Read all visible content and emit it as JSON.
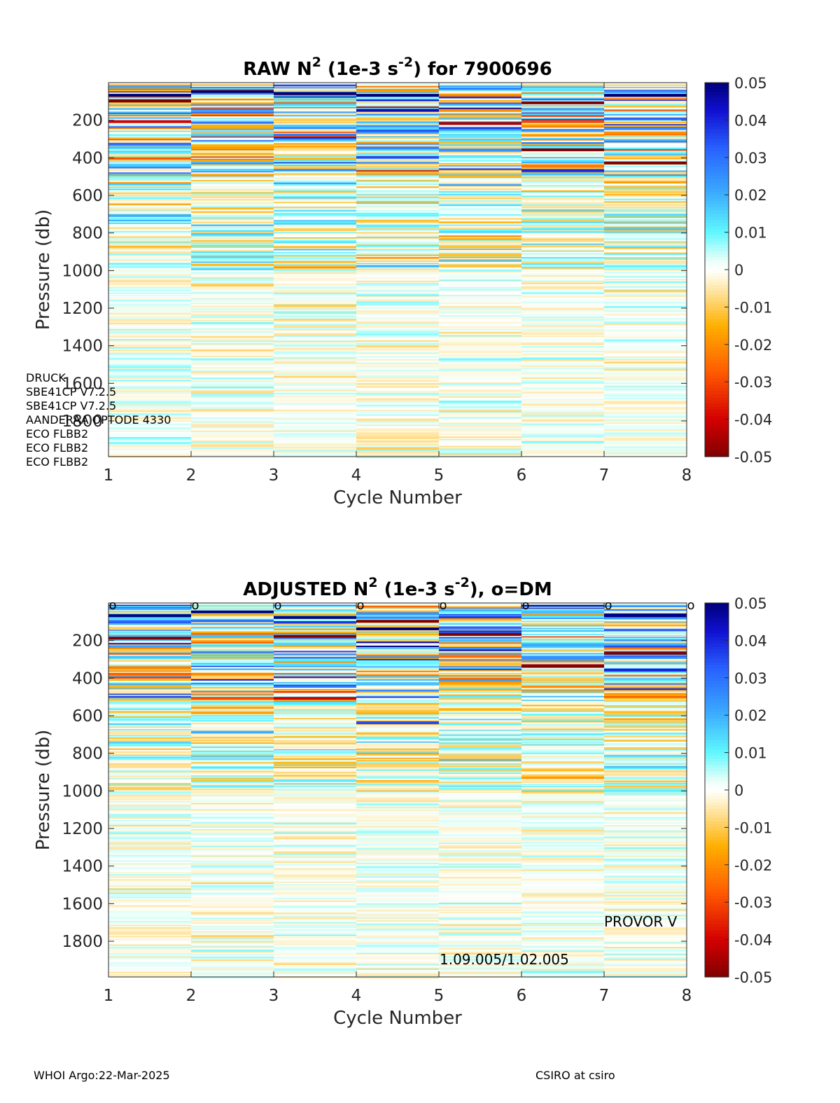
{
  "chart_data": [
    {
      "type": "heatmap",
      "title": {
        "main": "RAW N",
        "sup1": "2",
        "mid": " (1e-3 s",
        "sup2": "-2",
        "end": ") for 7900696"
      },
      "xlabel": "Cycle Number",
      "ylabel": "Pressure (db)",
      "x_ticks": [
        "1",
        "2",
        "3",
        "4",
        "5",
        "6",
        "7",
        "8"
      ],
      "y_ticks": [
        "200",
        "400",
        "600",
        "800",
        "1000",
        "1200",
        "1400",
        "1600",
        "1800"
      ],
      "colorbar_ticks": [
        "0.05",
        "0.04",
        "0.03",
        "0.02",
        "0.01",
        "0",
        "-0.01",
        "-0.02",
        "-0.03",
        "-0.04",
        "-0.05"
      ],
      "xlim": [
        1,
        8
      ],
      "ylim": [
        0,
        1990
      ],
      "clim": [
        -0.05,
        0.05
      ],
      "y_reversed": true,
      "colormap": "jet with white near zero",
      "cycles": [
        1,
        2,
        3,
        4,
        5,
        6,
        7
      ],
      "features": [
        {
          "cycle": 1,
          "pressure": 60,
          "value": 0.05
        },
        {
          "cycle": 1,
          "pressure": 90,
          "value": -0.05
        },
        {
          "cycle": 1,
          "pressure": 200,
          "value": -0.04
        },
        {
          "cycle": 1,
          "pressure": 320,
          "value": 0.03
        },
        {
          "cycle": 1,
          "pressure": 700,
          "value": 0.02
        },
        {
          "cycle": 2,
          "pressure": 40,
          "value": 0.05
        },
        {
          "cycle": 2,
          "pressure": 225,
          "value": -0.015
        },
        {
          "cycle": 2,
          "pressure": 460,
          "value": 0.015
        },
        {
          "cycle": 2,
          "pressure": 1070,
          "value": -0.01
        },
        {
          "cycle": 3,
          "pressure": 50,
          "value": 0.05
        },
        {
          "cycle": 3,
          "pressure": 190,
          "value": -0.01
        },
        {
          "cycle": 3,
          "pressure": 775,
          "value": -0.01
        },
        {
          "cycle": 3,
          "pressure": 1180,
          "value": -0.01
        },
        {
          "cycle": 4,
          "pressure": 60,
          "value": 0.05
        },
        {
          "cycle": 4,
          "pressure": 140,
          "value": 0.045
        },
        {
          "cycle": 4,
          "pressure": 390,
          "value": 0.035
        },
        {
          "cycle": 4,
          "pressure": 1940,
          "value": -0.01
        },
        {
          "cycle": 5,
          "pressure": 140,
          "value": -0.02
        },
        {
          "cycle": 5,
          "pressure": 210,
          "value": -0.045
        },
        {
          "cycle": 5,
          "pressure": 910,
          "value": -0.012
        },
        {
          "cycle": 6,
          "pressure": 100,
          "value": -0.05
        },
        {
          "cycle": 6,
          "pressure": 200,
          "value": -0.03
        },
        {
          "cycle": 6,
          "pressure": 350,
          "value": -0.05
        },
        {
          "cycle": 6,
          "pressure": 460,
          "value": 0.04
        },
        {
          "cycle": 7,
          "pressure": 60,
          "value": 0.05
        },
        {
          "cycle": 7,
          "pressure": 260,
          "value": -0.02
        },
        {
          "cycle": 7,
          "pressure": 420,
          "value": -0.05
        },
        {
          "cycle": 7,
          "pressure": 575,
          "value": -0.01
        }
      ],
      "annotations": [
        "DRUCK",
        "SBE41CP V7.2.5",
        "SBE41CP V7.2.5",
        "AANDERAA OPTODE 4330",
        "ECO FLBB2",
        "ECO FLBB2",
        "ECO FLBB2"
      ]
    },
    {
      "type": "heatmap",
      "title": {
        "main": "ADJUSTED N",
        "sup1": "2",
        "mid": " (1e-3 s",
        "sup2": "-2",
        "end": "), o=DM"
      },
      "xlabel": "Cycle Number",
      "ylabel": "Pressure (db)",
      "x_ticks": [
        "1",
        "2",
        "3",
        "4",
        "5",
        "6",
        "7",
        "8"
      ],
      "y_ticks": [
        "200",
        "400",
        "600",
        "800",
        "1000",
        "1200",
        "1400",
        "1600",
        "1800"
      ],
      "colorbar_ticks": [
        "0.05",
        "0.04",
        "0.03",
        "0.02",
        "0.01",
        "0",
        "-0.01",
        "-0.02",
        "-0.03",
        "-0.04",
        "-0.05"
      ],
      "xlim": [
        1,
        8
      ],
      "ylim": [
        0,
        1990
      ],
      "clim": [
        -0.05,
        0.05
      ],
      "y_reversed": true,
      "colormap": "jet with white near zero",
      "cycles": [
        1,
        2,
        3,
        4,
        5,
        6,
        7
      ],
      "dm_marker": "o",
      "dm_cycles": [
        1,
        2,
        3,
        4,
        5,
        6,
        7,
        8
      ],
      "features": [
        {
          "cycle": 1,
          "pressure": 60,
          "value": 0.05
        },
        {
          "cycle": 1,
          "pressure": 180,
          "value": -0.05
        },
        {
          "cycle": 1,
          "pressure": 340,
          "value": -0.02
        },
        {
          "cycle": 1,
          "pressure": 980,
          "value": -0.01
        },
        {
          "cycle": 2,
          "pressure": 40,
          "value": 0.05
        },
        {
          "cycle": 2,
          "pressure": 500,
          "value": -0.03
        },
        {
          "cycle": 2,
          "pressure": 680,
          "value": 0.02
        },
        {
          "cycle": 3,
          "pressure": 70,
          "value": 0.05
        },
        {
          "cycle": 3,
          "pressure": 170,
          "value": -0.05
        },
        {
          "cycle": 3,
          "pressure": 500,
          "value": -0.04
        },
        {
          "cycle": 4,
          "pressure": 90,
          "value": -0.05
        },
        {
          "cycle": 4,
          "pressure": 130,
          "value": 0.05
        },
        {
          "cycle": 4,
          "pressure": 630,
          "value": 0.035
        },
        {
          "cycle": 5,
          "pressure": 160,
          "value": -0.05
        },
        {
          "cycle": 5,
          "pressure": 810,
          "value": -0.01
        },
        {
          "cycle": 6,
          "pressure": 330,
          "value": -0.05
        },
        {
          "cycle": 6,
          "pressure": 560,
          "value": -0.01
        },
        {
          "cycle": 7,
          "pressure": 60,
          "value": 0.05
        },
        {
          "cycle": 7,
          "pressure": 260,
          "value": -0.05
        },
        {
          "cycle": 7,
          "pressure": 350,
          "value": 0.04
        }
      ],
      "annotations": [
        "PROVOR V",
        "1.09.005/1.02.005"
      ]
    }
  ],
  "footer": {
    "left": "WHOI Argo:22-Mar-2025",
    "right": "CSIRO at csiro"
  }
}
